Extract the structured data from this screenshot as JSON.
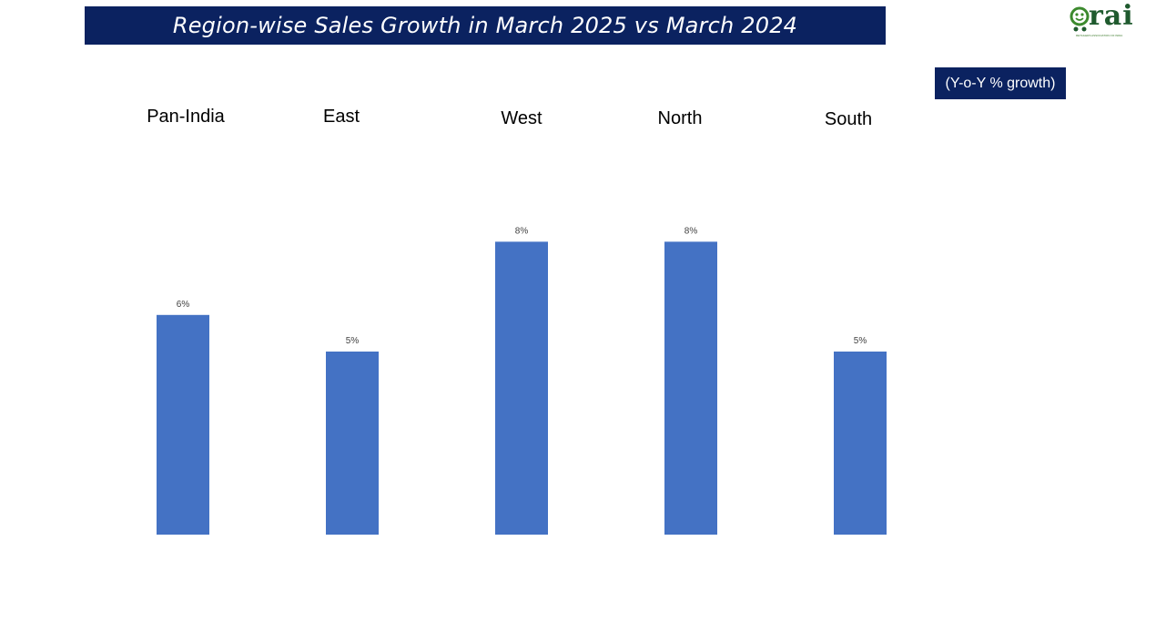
{
  "title": "Region-wise Sales Growth in March 2025 vs March 2024",
  "unit_note": "(Y-o-Y % growth)",
  "logo": {
    "name": "rai-logo",
    "text": "rai",
    "tagline": "RETAILERS ASSOCIATION OF INDIA"
  },
  "colors": {
    "bar": "#4472c4",
    "title_bg": "#0b2260",
    "title_text": "#ffffff",
    "logo": "#1f5a2e"
  },
  "chart_data": {
    "type": "bar",
    "categories": [
      "Pan-India",
      "East",
      "West",
      "North",
      "South"
    ],
    "values": [
      6,
      5,
      8,
      8,
      5
    ],
    "data_labels": [
      "6%",
      "5%",
      "8%",
      "8%",
      "5%"
    ],
    "title": "Region-wise Sales Growth in March 2025 vs March 2024",
    "xlabel": "",
    "ylabel": "",
    "ylim": [
      0,
      8
    ],
    "grid": false,
    "category_labels_position": "top"
  }
}
